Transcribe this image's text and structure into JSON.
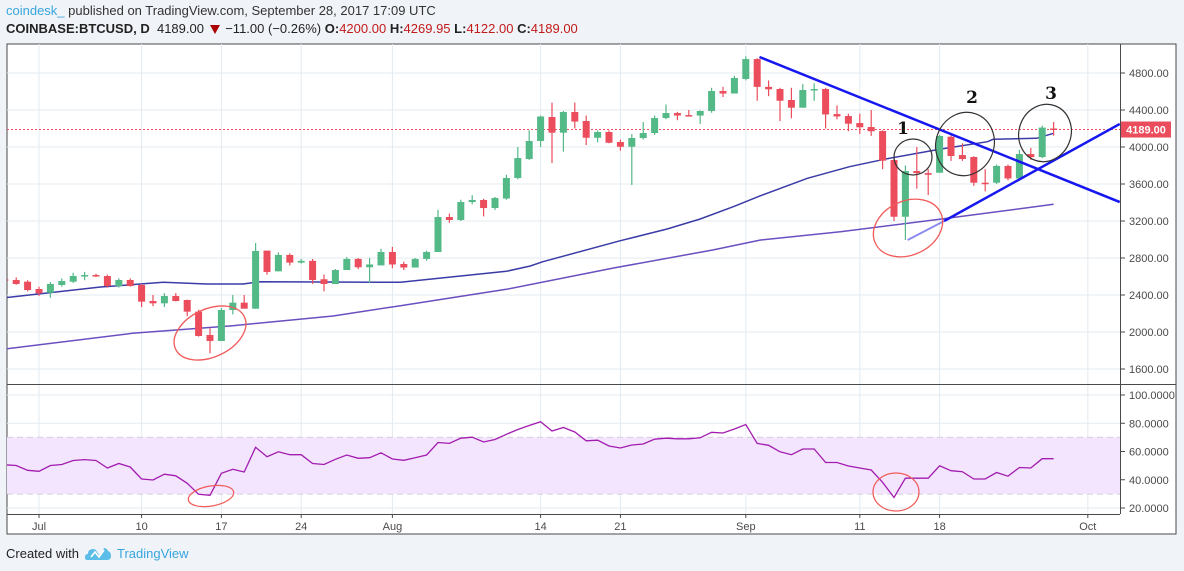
{
  "header": {
    "publisher": "coindesk_",
    "published_text": "published on TradingView.com, September 28, 2017 17:09 UTC",
    "symbol": "COINBASE:BTCUSD, D",
    "last": "4189.00",
    "change": "−11.00 (−0.26%)",
    "change_icon": "down-triangle-icon",
    "o_label": "O:",
    "o": "4200.00",
    "h_label": "H:",
    "h": "4269.95",
    "l_label": "L:",
    "l": "4122.00",
    "c_label": "C:",
    "c": "4189.00"
  },
  "footer": {
    "created_with": "Created with",
    "brand": "TradingView",
    "logo_icon": "tradingview-logo-icon"
  },
  "colors": {
    "up": "#53b987",
    "down": "#eb4d5c",
    "ma_fast": "#3b3ba8",
    "ma_slow": "#6a4fc0",
    "rsi": "#a21caf",
    "rsi_band": "#f3e5fd",
    "trendline": "#1717f0",
    "last_price": "#eb4d5c",
    "highlight_red": "#f25a5a",
    "highlight_black": "#333333"
  },
  "chart_data": {
    "type": "candlestick",
    "symbol": "COINBASE:BTCUSD",
    "interval": "D",
    "start_date": "2017-06-28",
    "ohlc": [
      [
        2570,
        2600,
        2530,
        2562
      ],
      [
        2562,
        2590,
        2510,
        2519
      ],
      [
        2544,
        2560,
        2440,
        2454
      ],
      [
        2465,
        2490,
        2390,
        2418
      ],
      [
        2425,
        2540,
        2370,
        2519
      ],
      [
        2508,
        2580,
        2490,
        2551
      ],
      [
        2544,
        2640,
        2530,
        2605
      ],
      [
        2605,
        2650,
        2560,
        2616
      ],
      [
        2616,
        2630,
        2595,
        2605
      ],
      [
        2605,
        2620,
        2480,
        2497
      ],
      [
        2497,
        2580,
        2480,
        2562
      ],
      [
        2562,
        2580,
        2490,
        2497
      ],
      [
        2508,
        2520,
        2270,
        2328
      ],
      [
        2335,
        2400,
        2280,
        2310
      ],
      [
        2310,
        2420,
        2270,
        2389
      ],
      [
        2389,
        2420,
        2330,
        2335
      ],
      [
        2346,
        2350,
        2170,
        2220
      ],
      [
        2220,
        2240,
        1950,
        1957
      ],
      [
        1968,
        2040,
        1770,
        1903
      ],
      [
        1903,
        2260,
        1903,
        2238
      ],
      [
        2238,
        2400,
        2190,
        2317
      ],
      [
        2317,
        2400,
        2280,
        2252
      ],
      [
        2252,
        2962,
        2252,
        2876
      ],
      [
        2880,
        2880,
        2620,
        2649
      ],
      [
        2656,
        2860,
        2656,
        2833
      ],
      [
        2833,
        2850,
        2720,
        2750
      ],
      [
        2750,
        2790,
        2740,
        2769
      ],
      [
        2769,
        2790,
        2520,
        2562
      ],
      [
        2570,
        2620,
        2440,
        2519
      ],
      [
        2519,
        2680,
        2519,
        2670
      ],
      [
        2670,
        2810,
        2670,
        2790
      ],
      [
        2790,
        2800,
        2680,
        2700
      ],
      [
        2700,
        2800,
        2530,
        2730
      ],
      [
        2720,
        2900,
        2720,
        2865
      ],
      [
        2865,
        2920,
        2690,
        2730
      ],
      [
        2735,
        2760,
        2670,
        2697
      ],
      [
        2697,
        2800,
        2697,
        2790
      ],
      [
        2790,
        2880,
        2770,
        2865
      ],
      [
        2865,
        3320,
        2865,
        3243
      ],
      [
        3243,
        3280,
        3180,
        3211
      ],
      [
        3211,
        3430,
        3200,
        3405
      ],
      [
        3405,
        3480,
        3380,
        3427
      ],
      [
        3427,
        3440,
        3250,
        3340
      ],
      [
        3340,
        3460,
        3320,
        3449
      ],
      [
        3443,
        3700,
        3430,
        3665
      ],
      [
        3665,
        4000,
        3650,
        3881
      ],
      [
        3870,
        4180,
        3860,
        4065
      ],
      [
        4065,
        4340,
        4000,
        4330
      ],
      [
        4324,
        4480,
        3827,
        4155
      ],
      [
        4155,
        4390,
        3950,
        4378
      ],
      [
        4378,
        4480,
        4200,
        4275
      ],
      [
        4281,
        4340,
        4020,
        4100
      ],
      [
        4100,
        4180,
        4050,
        4162
      ],
      [
        4162,
        4180,
        4040,
        4046
      ],
      [
        4054,
        4080,
        3960,
        4003
      ],
      [
        4003,
        4140,
        3589,
        4097
      ],
      [
        4097,
        4270,
        4080,
        4151
      ],
      [
        4151,
        4340,
        4130,
        4313
      ],
      [
        4313,
        4460,
        4300,
        4367
      ],
      [
        4367,
        4380,
        4290,
        4340
      ],
      [
        4345,
        4400,
        4330,
        4335
      ],
      [
        4340,
        4395,
        4250,
        4389
      ],
      [
        4389,
        4640,
        4370,
        4605
      ],
      [
        4605,
        4650,
        4540,
        4578
      ],
      [
        4578,
        4770,
        4578,
        4746
      ],
      [
        4735,
        4980,
        4720,
        4951
      ],
      [
        4951,
        4960,
        4500,
        4650
      ],
      [
        4650,
        4720,
        4550,
        4624
      ],
      [
        4627,
        4640,
        4280,
        4500
      ],
      [
        4508,
        4640,
        4310,
        4425
      ],
      [
        4425,
        4680,
        4425,
        4616
      ],
      [
        4616,
        4690,
        4500,
        4627
      ],
      [
        4627,
        4640,
        4200,
        4352
      ],
      [
        4356,
        4450,
        4300,
        4330
      ],
      [
        4335,
        4360,
        4170,
        4252
      ],
      [
        4259,
        4360,
        4140,
        4213
      ],
      [
        4216,
        4400,
        4120,
        4170
      ],
      [
        4173,
        4180,
        3760,
        3852
      ],
      [
        3859,
        3870,
        3200,
        3246
      ],
      [
        3246,
        3800,
        2995,
        3740
      ],
      [
        3740,
        4000,
        3550,
        3718
      ],
      [
        3718,
        3760,
        3480,
        3700
      ],
      [
        3722,
        4130,
        3722,
        4119
      ],
      [
        4111,
        4125,
        3850,
        3903
      ],
      [
        3913,
        4040,
        3850,
        3870
      ],
      [
        3892,
        3900,
        3580,
        3614
      ],
      [
        3614,
        3760,
        3520,
        3610
      ],
      [
        3614,
        3810,
        3600,
        3795
      ],
      [
        3795,
        3810,
        3640,
        3660
      ],
      [
        3660,
        3970,
        3650,
        3924
      ],
      [
        3924,
        3990,
        3860,
        3891
      ],
      [
        3891,
        4230,
        3880,
        4210
      ],
      [
        4200,
        4269.95,
        4122,
        4189
      ]
    ],
    "ma_fast": [
      [
        0,
        2371
      ],
      [
        8.4,
        2486
      ],
      [
        13.9,
        2537
      ],
      [
        17.7,
        2519
      ],
      [
        20.9,
        2519
      ],
      [
        22.4,
        2544
      ],
      [
        34.7,
        2537
      ],
      [
        44,
        2656
      ],
      [
        46.1,
        2714
      ],
      [
        47.2,
        2760
      ],
      [
        54,
        2987
      ],
      [
        58.1,
        3113
      ],
      [
        61,
        3222
      ],
      [
        63.9,
        3355
      ],
      [
        66.3,
        3473
      ],
      [
        70.4,
        3662
      ],
      [
        74.1,
        3787
      ],
      [
        77.4,
        3874
      ],
      [
        82,
        3975
      ],
      [
        86.2,
        4057
      ],
      [
        86.7,
        4083
      ],
      [
        90.5,
        4094
      ],
      [
        92,
        4148
      ]
    ],
    "ma_slow": [
      [
        0,
        1816
      ],
      [
        11.2,
        1986
      ],
      [
        20,
        2068
      ],
      [
        28.8,
        2173
      ],
      [
        34.7,
        2284
      ],
      [
        44,
        2462
      ],
      [
        53.4,
        2692
      ],
      [
        62.1,
        2886
      ],
      [
        66.3,
        2995
      ],
      [
        73.3,
        3084
      ],
      [
        82,
        3218
      ],
      [
        92,
        3380
      ]
    ],
    "rsi": [
      50.6,
      50.1,
      46.7,
      46.0,
      50.1,
      50.8,
      53.6,
      54.3,
      53.6,
      48.3,
      51.5,
      49.0,
      40.5,
      39.8,
      43.9,
      42.8,
      37.5,
      29.7,
      29.0,
      44.6,
      47.4,
      45.5,
      63.0,
      56.3,
      59.8,
      57.7,
      57.7,
      51.5,
      50.8,
      54.5,
      57.5,
      55.2,
      55.6,
      59.1,
      54.7,
      53.8,
      55.6,
      57.5,
      66.4,
      65.7,
      69.4,
      70.1,
      66.7,
      68.5,
      72.2,
      75.6,
      78.4,
      81.1,
      74.5,
      77.0,
      73.8,
      67.6,
      68.0,
      63.9,
      62.5,
      64.6,
      65.3,
      68.7,
      69.4,
      69.0,
      69.0,
      69.7,
      73.6,
      73.1,
      75.9,
      79.1,
      65.7,
      64.4,
      59.8,
      57.7,
      61.8,
      61.8,
      52.2,
      52.2,
      49.7,
      48.3,
      46.9,
      38.2,
      27.4,
      41.1,
      41.1,
      41.1,
      49.9,
      46.4,
      45.7,
      40.5,
      40.5,
      45.1,
      42.5,
      48.7,
      48.3,
      54.9,
      54.9
    ],
    "rsi_band": [
      30,
      70
    ],
    "trendlines": [
      {
        "name": "descending-resistance",
        "points": [
          [
            66.2,
            4973
          ],
          [
            97.8,
            3405
          ]
        ]
      },
      {
        "name": "ascending-support-faint",
        "points": [
          [
            79.2,
            2995
          ],
          [
            82.4,
            3200
          ]
        ]
      },
      {
        "name": "ascending-support",
        "points": [
          [
            82.4,
            3200
          ],
          [
            97.8,
            4249
          ]
        ]
      }
    ],
    "price_axis": {
      "ticks": [
        "1600.00",
        "2000.00",
        "2400.00",
        "2800.00",
        "3200.00",
        "3600.00",
        "4000.00",
        "4400.00",
        "4800.00"
      ],
      "last_price_label": "4189.00",
      "last_price": 4189
    },
    "rsi_axis": {
      "ticks": [
        "20.0000",
        "40.0000",
        "60.0000",
        "80.0000",
        "100.0000"
      ]
    },
    "x_ticks": [
      {
        "label": "Jul",
        "day": 3
      },
      {
        "label": "10",
        "day": 12
      },
      {
        "label": "17",
        "day": 19
      },
      {
        "label": "24",
        "day": 26
      },
      {
        "label": "Aug",
        "day": 34
      },
      {
        "label": "14",
        "day": 47
      },
      {
        "label": "21",
        "day": 54
      },
      {
        "label": "Sep",
        "day": 65
      },
      {
        "label": "11",
        "day": 75
      },
      {
        "label": "18",
        "day": 82
      },
      {
        "label": "Oct",
        "day": 95
      }
    ],
    "annotation_labels": [
      "1",
      "2",
      "3"
    ]
  }
}
